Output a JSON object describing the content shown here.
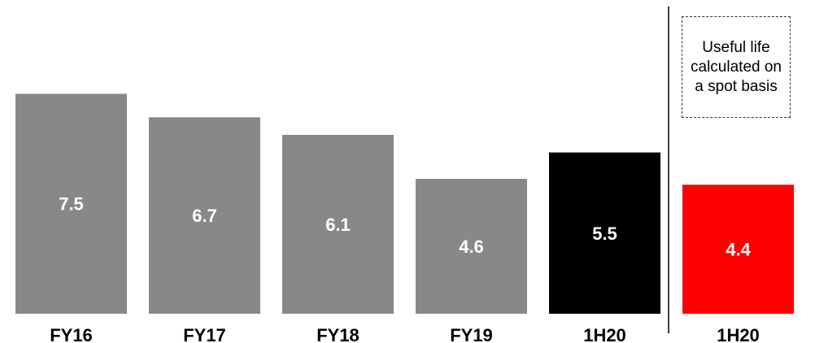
{
  "chart_data": {
    "type": "bar",
    "categories": [
      "FY16",
      "FY17",
      "FY18",
      "FY19",
      "1H20",
      "1H20"
    ],
    "values": [
      7.5,
      6.7,
      6.1,
      4.6,
      5.5,
      4.4
    ],
    "value_labels": [
      "7.5",
      "6.7",
      "6.1",
      "4.6",
      "5.5",
      "4.4"
    ],
    "colors": [
      "#888888",
      "#888888",
      "#888888",
      "#888888",
      "#000000",
      "#ff0000"
    ],
    "title": "",
    "xlabel": "",
    "ylabel": "",
    "ylim": [
      0,
      10.7
    ],
    "grid": false,
    "separator_before_index": 5,
    "annotation": "Useful life calculated on a spot basis"
  }
}
